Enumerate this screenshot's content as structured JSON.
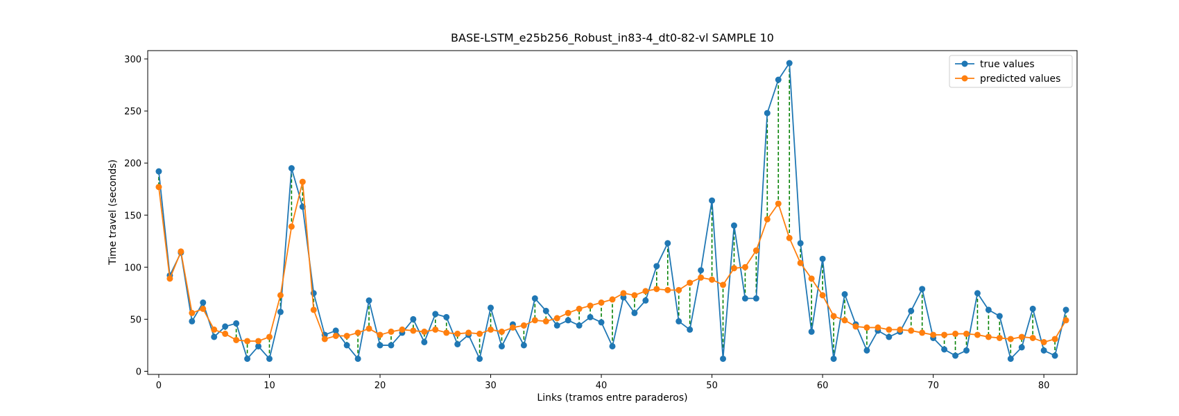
{
  "chart_data": {
    "type": "line",
    "title": "BASE-LSTM_e25b256_Robust_in83-4_dt0-82-vl SAMPLE 10",
    "xlabel": "Links (tramos entre paraderos)",
    "ylabel": "Time travel (seconds)",
    "xlim": [
      -1,
      83
    ],
    "ylim": [
      -3,
      308
    ],
    "xticks": [
      0,
      10,
      20,
      30,
      40,
      50,
      60,
      70,
      80
    ],
    "yticks": [
      0,
      50,
      100,
      150,
      200,
      250,
      300
    ],
    "grid": false,
    "legend_position": "top-right",
    "residual_color": "#008000",
    "series": [
      {
        "name": "true values",
        "color": "#1f77b4",
        "values": [
          192,
          92,
          114,
          48,
          66,
          33,
          43,
          46,
          12,
          24,
          12,
          57,
          195,
          158,
          75,
          35,
          39,
          25,
          12,
          68,
          25,
          25,
          37,
          50,
          28,
          55,
          52,
          26,
          35,
          12,
          61,
          24,
          45,
          25,
          70,
          58,
          44,
          49,
          44,
          52,
          47,
          24,
          71,
          56,
          68,
          101,
          123,
          48,
          40,
          97,
          164,
          12,
          140,
          70,
          70,
          248,
          280,
          296,
          123,
          38,
          108,
          12,
          74,
          45,
          20,
          39,
          33,
          38,
          58,
          79,
          32,
          21,
          15,
          20,
          75,
          59,
          53,
          12,
          23,
          60,
          20,
          15,
          59
        ]
      },
      {
        "name": "predicted values",
        "color": "#ff7f0e",
        "values": [
          177,
          89,
          115,
          56,
          60,
          40,
          36,
          30,
          29,
          29,
          33,
          73,
          139,
          182,
          59,
          31,
          34,
          34,
          37,
          41,
          35,
          38,
          40,
          39,
          38,
          40,
          37,
          36,
          37,
          36,
          40,
          38,
          42,
          44,
          49,
          48,
          51,
          56,
          60,
          63,
          66,
          69,
          75,
          73,
          77,
          79,
          78,
          78,
          85,
          90,
          88,
          83,
          99,
          100,
          116,
          146,
          161,
          128,
          104,
          89,
          73,
          53,
          49,
          43,
          42,
          42,
          40,
          40,
          39,
          37,
          35,
          35,
          36,
          36,
          35,
          33,
          32,
          31,
          33,
          32,
          28,
          31,
          49
        ]
      }
    ]
  }
}
